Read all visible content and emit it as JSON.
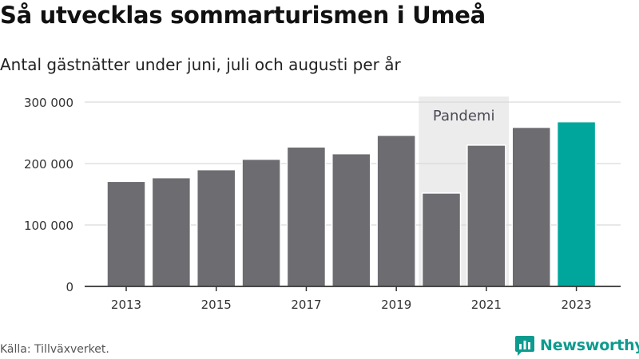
{
  "chart_data": {
    "type": "bar",
    "title": "Så utvecklas sommarturismen i Umeå",
    "subtitle": "Antal gästnätter under juni, juli och augusti per år",
    "categories": [
      "2013",
      "2014",
      "2015",
      "2016",
      "2017",
      "2018",
      "2019",
      "2020",
      "2021",
      "2022",
      "2023"
    ],
    "x_tick_labels": [
      "2013",
      "2015",
      "2017",
      "2019",
      "2021",
      "2023"
    ],
    "values": [
      171000,
      177000,
      190000,
      207000,
      227000,
      216000,
      246000,
      152000,
      230000,
      259000,
      268000
    ],
    "ylim": [
      0,
      300000
    ],
    "y_ticks": [
      0,
      100000,
      200000,
      300000
    ],
    "y_tick_labels": [
      "0",
      "100 000",
      "200 000",
      "300 000"
    ],
    "xlabel": "",
    "ylabel": "",
    "grid": true,
    "bar_color": "#6d6c71",
    "highlight_color": "#00a69c",
    "highlight_category": "2023",
    "annotation": {
      "label": "Pandemi",
      "span_categories": [
        "2020",
        "2021"
      ],
      "band_color": "#ececec"
    }
  },
  "source": "Källa: Tillväxverket.",
  "brand": {
    "name": "Newsworthy",
    "icon": "newsworthy-logo-icon",
    "color": "#0e9b8f"
  }
}
